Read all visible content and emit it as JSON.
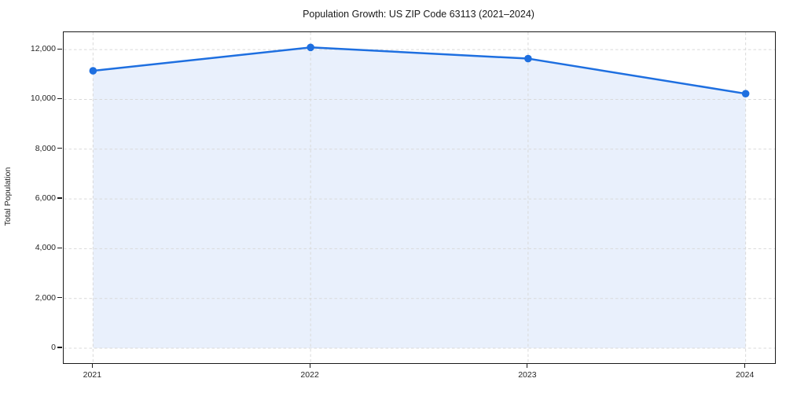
{
  "chart_data": {
    "type": "line",
    "title": "Population Growth: US ZIP Code 63113 (2021–2024)",
    "xlabel": "",
    "ylabel": "Total Population",
    "x": [
      2021,
      2022,
      2023,
      2024
    ],
    "x_tick_labels": [
      "2021",
      "2022",
      "2023",
      "2024"
    ],
    "series": [
      {
        "name": "Total Population",
        "values": [
          11150,
          12090,
          11640,
          10230
        ]
      }
    ],
    "values": [
      11150,
      12090,
      11640,
      10230
    ],
    "yticks": [
      0,
      2000,
      4000,
      6000,
      8000,
      10000,
      12000
    ],
    "ylim": [
      -600,
      12700
    ],
    "xlim": [
      2020.865,
      2024.135
    ],
    "grid": true,
    "grid_style": "dashed",
    "legend": "none",
    "area_fill": true,
    "fill_baseline": 0,
    "colors": {
      "line": "#1e6fe0",
      "marker": "#1e6fe0",
      "fill": "#e9f0fc",
      "grid": "#d9d9d9",
      "spine": "#1a1a1a",
      "text": "#262626"
    }
  }
}
